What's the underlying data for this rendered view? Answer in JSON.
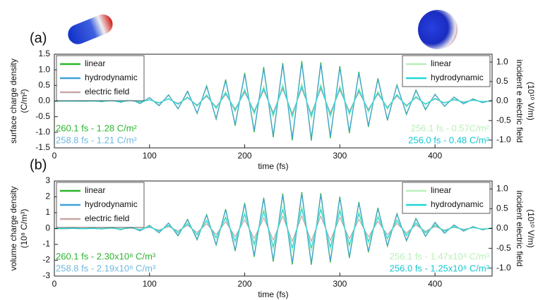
{
  "chart_data": [
    {
      "type": "line",
      "panel_label": "(a)",
      "ylabel": [
        "surface charge density",
        "(C/m²)"
      ],
      "y2label": [
        "incident e electric field",
        "(10¹⁰ V/m)"
      ],
      "xlabel": "time (fs)",
      "xlim": [
        0,
        460
      ],
      "xticks": [
        0,
        100,
        200,
        300,
        400
      ],
      "ylim": [
        -1.5,
        1.5
      ],
      "yticks": [
        -1.5,
        {
          "value": -1,
          "label": "-1.0"
        },
        -0.5,
        {
          "value": 0,
          "label": "0.0"
        },
        0.5,
        {
          "value": 1,
          "label": "1.0"
        },
        1.5
      ],
      "y2lim": [
        -1.2,
        1.2
      ],
      "y2ticks": [
        {
          "value": -1,
          "label": "-1.0"
        },
        -0.5,
        {
          "value": 0,
          "label": "0.0"
        },
        0.5,
        {
          "value": 1,
          "label": "1.0"
        }
      ],
      "x": [
        0,
        10,
        20,
        30,
        40,
        50,
        60,
        70,
        80,
        90,
        100,
        110,
        120,
        130,
        140,
        150,
        160,
        170,
        180,
        190,
        200,
        210,
        220,
        230,
        240,
        250,
        260,
        270,
        280,
        290,
        300,
        310,
        320,
        330,
        340,
        350,
        360,
        370,
        380,
        390,
        400,
        410,
        420,
        430,
        440,
        450,
        460
      ],
      "series": [
        {
          "name": "linear",
          "color": "#2cb52c",
          "legend": "left",
          "values": [
            0,
            0,
            0.01,
            -0.01,
            0.01,
            -0.02,
            0.03,
            -0.04,
            0.06,
            -0.08,
            0.11,
            -0.15,
            0.2,
            -0.25,
            0.32,
            -0.4,
            0.49,
            -0.58,
            0.69,
            -0.79,
            0.9,
            -1.0,
            1.09,
            -1.16,
            1.22,
            -1.26,
            1.28,
            -1.27,
            1.24,
            -1.19,
            1.12,
            -1.03,
            0.94,
            -0.83,
            0.73,
            -0.62,
            0.52,
            -0.43,
            0.35,
            -0.28,
            0.22,
            -0.17,
            0.13,
            -0.09,
            0.07,
            -0.05,
            0.03
          ]
        },
        {
          "name": "hydrodynamic",
          "color": "#3fa2db",
          "legend": "left",
          "values": [
            0,
            0,
            0,
            -0.01,
            0.01,
            -0.02,
            0.03,
            -0.04,
            0.06,
            -0.08,
            0.11,
            -0.14,
            0.19,
            -0.24,
            0.3,
            -0.38,
            0.46,
            -0.55,
            0.65,
            -0.75,
            0.85,
            -0.94,
            1.03,
            -1.1,
            1.16,
            -1.19,
            1.21,
            -1.2,
            1.17,
            -1.13,
            1.06,
            -0.98,
            0.89,
            -0.79,
            0.69,
            -0.59,
            0.5,
            -0.41,
            0.33,
            -0.26,
            0.21,
            -0.16,
            0.12,
            -0.09,
            0.06,
            -0.05,
            0.03
          ]
        },
        {
          "name": "electric field",
          "color": "#c9a6a6",
          "legend": "left",
          "axis": "y2",
          "values": [
            0,
            0,
            0,
            0,
            0,
            0,
            0.01,
            -0.01,
            0.01,
            -0.02,
            0.03,
            -0.04,
            0.05,
            -0.06,
            0.08,
            -0.1,
            0.12,
            -0.15,
            0.17,
            -0.2,
            0.22,
            -0.25,
            0.27,
            -0.29,
            0.31,
            -0.32,
            0.32,
            -0.32,
            0.31,
            -0.3,
            0.28,
            -0.26,
            0.23,
            -0.21,
            0.18,
            -0.16,
            0.13,
            -0.11,
            0.09,
            -0.07,
            0.05,
            -0.04,
            0.03,
            -0.02,
            0.02,
            -0.01,
            0.01
          ]
        },
        {
          "name": "linear",
          "color": "#b9efb9",
          "legend": "right",
          "values": [
            0,
            0,
            0,
            0,
            0.01,
            -0.01,
            0.01,
            -0.02,
            0.03,
            -0.04,
            0.05,
            -0.07,
            0.09,
            -0.11,
            0.14,
            -0.18,
            0.22,
            -0.26,
            0.31,
            -0.35,
            0.4,
            -0.44,
            0.48,
            -0.52,
            0.54,
            -0.56,
            0.57,
            -0.57,
            0.55,
            -0.53,
            0.5,
            -0.46,
            0.42,
            -0.37,
            0.32,
            -0.28,
            0.23,
            -0.19,
            0.16,
            -0.12,
            0.1,
            -0.07,
            0.06,
            -0.04,
            0.03,
            -0.02,
            0.01
          ]
        },
        {
          "name": "hydrodynamic",
          "color": "#22d6d6",
          "legend": "right",
          "values": [
            0,
            0,
            0,
            0,
            0,
            -0.01,
            0.01,
            -0.02,
            0.02,
            -0.03,
            0.04,
            -0.06,
            0.07,
            -0.1,
            0.12,
            -0.15,
            0.18,
            -0.22,
            0.26,
            -0.3,
            0.34,
            -0.37,
            0.41,
            -0.44,
            0.46,
            -0.47,
            0.48,
            -0.48,
            0.47,
            -0.45,
            0.42,
            -0.39,
            0.35,
            -0.31,
            0.27,
            -0.23,
            0.2,
            -0.16,
            0.13,
            -0.1,
            0.08,
            -0.06,
            0.05,
            -0.04,
            0.03,
            -0.02,
            0.01
          ]
        }
      ],
      "annotations": [
        {
          "text": "260.1 fs - 1.28 C/m²",
          "color": "#2cb52c",
          "side": "left"
        },
        {
          "text": "258.8 fs - 1.21 C/m²",
          "color": "#6fb8e0",
          "side": "left"
        },
        {
          "text": "256.1 fs - 0.57C/m²",
          "color": "#b9efb9",
          "side": "right"
        },
        {
          "text": "256.0 fs - 0.48 C/m²",
          "color": "#12c8d0",
          "side": "right"
        }
      ]
    },
    {
      "type": "line",
      "panel_label": "(b)",
      "ylabel": [
        "volume charge density",
        "(10⁸ C/m³)"
      ],
      "y2label": [
        "incident electric field",
        "(10¹⁰ V/m)"
      ],
      "xlabel": "time (fs)",
      "xlim": [
        0,
        460
      ],
      "xticks": [
        0,
        100,
        200,
        300,
        400
      ],
      "ylim": [
        -3,
        3
      ],
      "yticks": [
        -3,
        -2,
        -1,
        0,
        1,
        2,
        3
      ],
      "y2lim": [
        -1.2,
        1.2
      ],
      "y2ticks": [
        {
          "value": -1,
          "label": "-1.0"
        },
        -0.5,
        {
          "value": 0,
          "label": "0.0"
        },
        0.5,
        {
          "value": 1,
          "label": "1.0"
        }
      ],
      "x": [
        0,
        10,
        20,
        30,
        40,
        50,
        60,
        70,
        80,
        90,
        100,
        110,
        120,
        130,
        140,
        150,
        160,
        170,
        180,
        190,
        200,
        210,
        220,
        230,
        240,
        250,
        260,
        270,
        280,
        290,
        300,
        310,
        320,
        330,
        340,
        350,
        360,
        370,
        380,
        390,
        400,
        410,
        420,
        430,
        440,
        450,
        460
      ],
      "series": [
        {
          "name": "linear",
          "color": "#2cb52c",
          "legend": "left",
          "values": [
            0,
            -0.01,
            0.01,
            -0.02,
            0.02,
            -0.03,
            0.05,
            -0.08,
            0.11,
            -0.15,
            0.2,
            -0.27,
            0.35,
            -0.46,
            0.58,
            -0.72,
            0.88,
            -1.05,
            1.23,
            -1.42,
            1.61,
            -1.79,
            1.95,
            -2.09,
            2.2,
            -2.27,
            2.3,
            -2.29,
            2.23,
            -2.14,
            2.01,
            -1.86,
            1.68,
            -1.5,
            1.31,
            -1.12,
            0.94,
            -0.78,
            0.63,
            -0.5,
            0.39,
            -0.3,
            0.23,
            -0.17,
            0.12,
            -0.09,
            0.06
          ]
        },
        {
          "name": "hydrodynamic",
          "color": "#3fa2db",
          "legend": "left",
          "values": [
            0,
            -0.01,
            0.01,
            -0.02,
            0.02,
            -0.03,
            0.05,
            -0.07,
            0.1,
            -0.14,
            0.19,
            -0.26,
            0.34,
            -0.43,
            0.55,
            -0.68,
            0.83,
            -1.0,
            1.17,
            -1.35,
            1.53,
            -1.7,
            1.86,
            -1.99,
            2.09,
            -2.16,
            2.19,
            -2.18,
            2.12,
            -2.04,
            1.92,
            -1.77,
            1.6,
            -1.43,
            1.24,
            -1.07,
            0.9,
            -0.74,
            0.6,
            -0.48,
            0.37,
            -0.29,
            0.22,
            -0.16,
            0.12,
            -0.08,
            0.06
          ]
        },
        {
          "name": "electric field",
          "color": "#c9a6a6",
          "legend": "left",
          "axis": "y2",
          "values": [
            0,
            0,
            0,
            0,
            0,
            0,
            0.01,
            -0.01,
            0.01,
            -0.02,
            0.03,
            -0.04,
            0.05,
            -0.06,
            0.08,
            -0.1,
            0.12,
            -0.15,
            0.17,
            -0.2,
            0.22,
            -0.25,
            0.27,
            -0.29,
            0.31,
            -0.32,
            0.32,
            -0.32,
            0.31,
            -0.3,
            0.28,
            -0.26,
            0.23,
            -0.21,
            0.18,
            -0.16,
            0.13,
            -0.11,
            0.09,
            -0.07,
            0.05,
            -0.04,
            0.03,
            -0.02,
            0.02,
            -0.01,
            0.01
          ]
        },
        {
          "name": "linear",
          "color": "#b9efb9",
          "legend": "right",
          "values": [
            0,
            0,
            0.01,
            -0.01,
            0.01,
            -0.02,
            0.03,
            -0.05,
            0.07,
            -0.09,
            0.13,
            -0.17,
            0.23,
            -0.29,
            0.37,
            -0.46,
            0.56,
            -0.67,
            0.79,
            -0.91,
            1.03,
            -1.14,
            1.25,
            -1.34,
            1.41,
            -1.45,
            1.47,
            -1.46,
            1.43,
            -1.37,
            1.29,
            -1.19,
            1.08,
            -0.96,
            0.83,
            -0.72,
            0.6,
            -0.5,
            0.4,
            -0.32,
            0.25,
            -0.19,
            0.15,
            -0.11,
            0.08,
            -0.06,
            0.04
          ]
        },
        {
          "name": "hydrodynamic",
          "color": "#22d6d6",
          "legend": "right",
          "values": [
            0,
            0,
            0.01,
            -0.01,
            0.01,
            -0.02,
            0.03,
            -0.04,
            0.06,
            -0.08,
            0.11,
            -0.15,
            0.19,
            -0.25,
            0.31,
            -0.39,
            0.48,
            -0.57,
            0.67,
            -0.77,
            0.88,
            -0.97,
            1.06,
            -1.14,
            1.2,
            -1.23,
            1.25,
            -1.24,
            1.21,
            -1.16,
            1.09,
            -1.01,
            0.92,
            -0.81,
            0.71,
            -0.61,
            0.51,
            -0.42,
            0.34,
            -0.27,
            0.21,
            -0.16,
            0.12,
            -0.09,
            0.07,
            -0.05,
            0.03
          ]
        }
      ],
      "annotations": [
        {
          "text": "260.1 fs - 2.30x10⁸ C/m³",
          "color": "#2cb52c",
          "side": "left"
        },
        {
          "text": "258.8 fs - 2.19x10⁸ C/m³",
          "color": "#6fb8e0",
          "side": "left"
        },
        {
          "text": "256.1 fs - 1.47x10⁸ C/m³",
          "color": "#b9efb9",
          "side": "right"
        },
        {
          "text": "256.0 fs - 1.25x10⁸ C/m³",
          "color": "#12c8d0",
          "side": "right"
        }
      ]
    }
  ]
}
